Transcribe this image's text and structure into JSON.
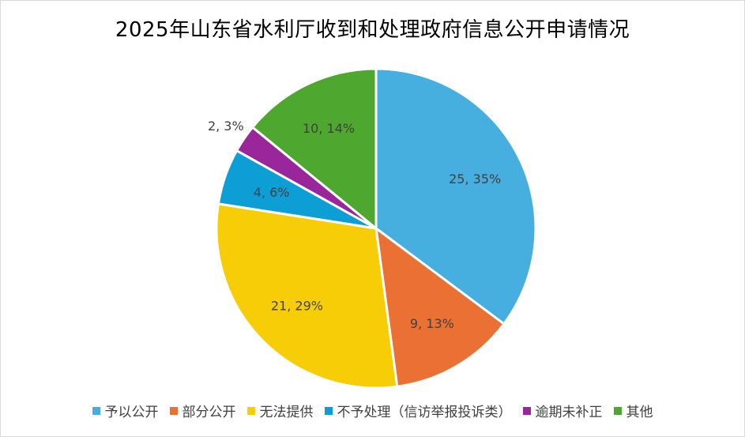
{
  "chart_data": {
    "type": "pie",
    "title": "2025年山东省水利厅收到和处理政府信息公开申请情况",
    "legend_position": "bottom",
    "slices": [
      {
        "name": "予以公开",
        "value": 25,
        "percent": "35%",
        "label": "25, 35%",
        "color": "#47AFE0"
      },
      {
        "name": "部分公开",
        "value": 9,
        "percent": "13%",
        "label": "9, 13%",
        "color": "#EA7033"
      },
      {
        "name": "无法提供",
        "value": 21,
        "percent": "29%",
        "label": "21, 29%",
        "color": "#F7CD07"
      },
      {
        "name": "不予处理（信访举报投诉类）",
        "value": 4,
        "percent": "6%",
        "label": "4, 6%",
        "color": "#0E9ED6"
      },
      {
        "name": "逾期未补正",
        "value": 2,
        "percent": "3%",
        "label": "2, 3%",
        "color": "#99279B"
      },
      {
        "name": "其他",
        "value": 10,
        "percent": "14%",
        "label": "10, 14%",
        "color": "#4EA72E"
      }
    ]
  }
}
